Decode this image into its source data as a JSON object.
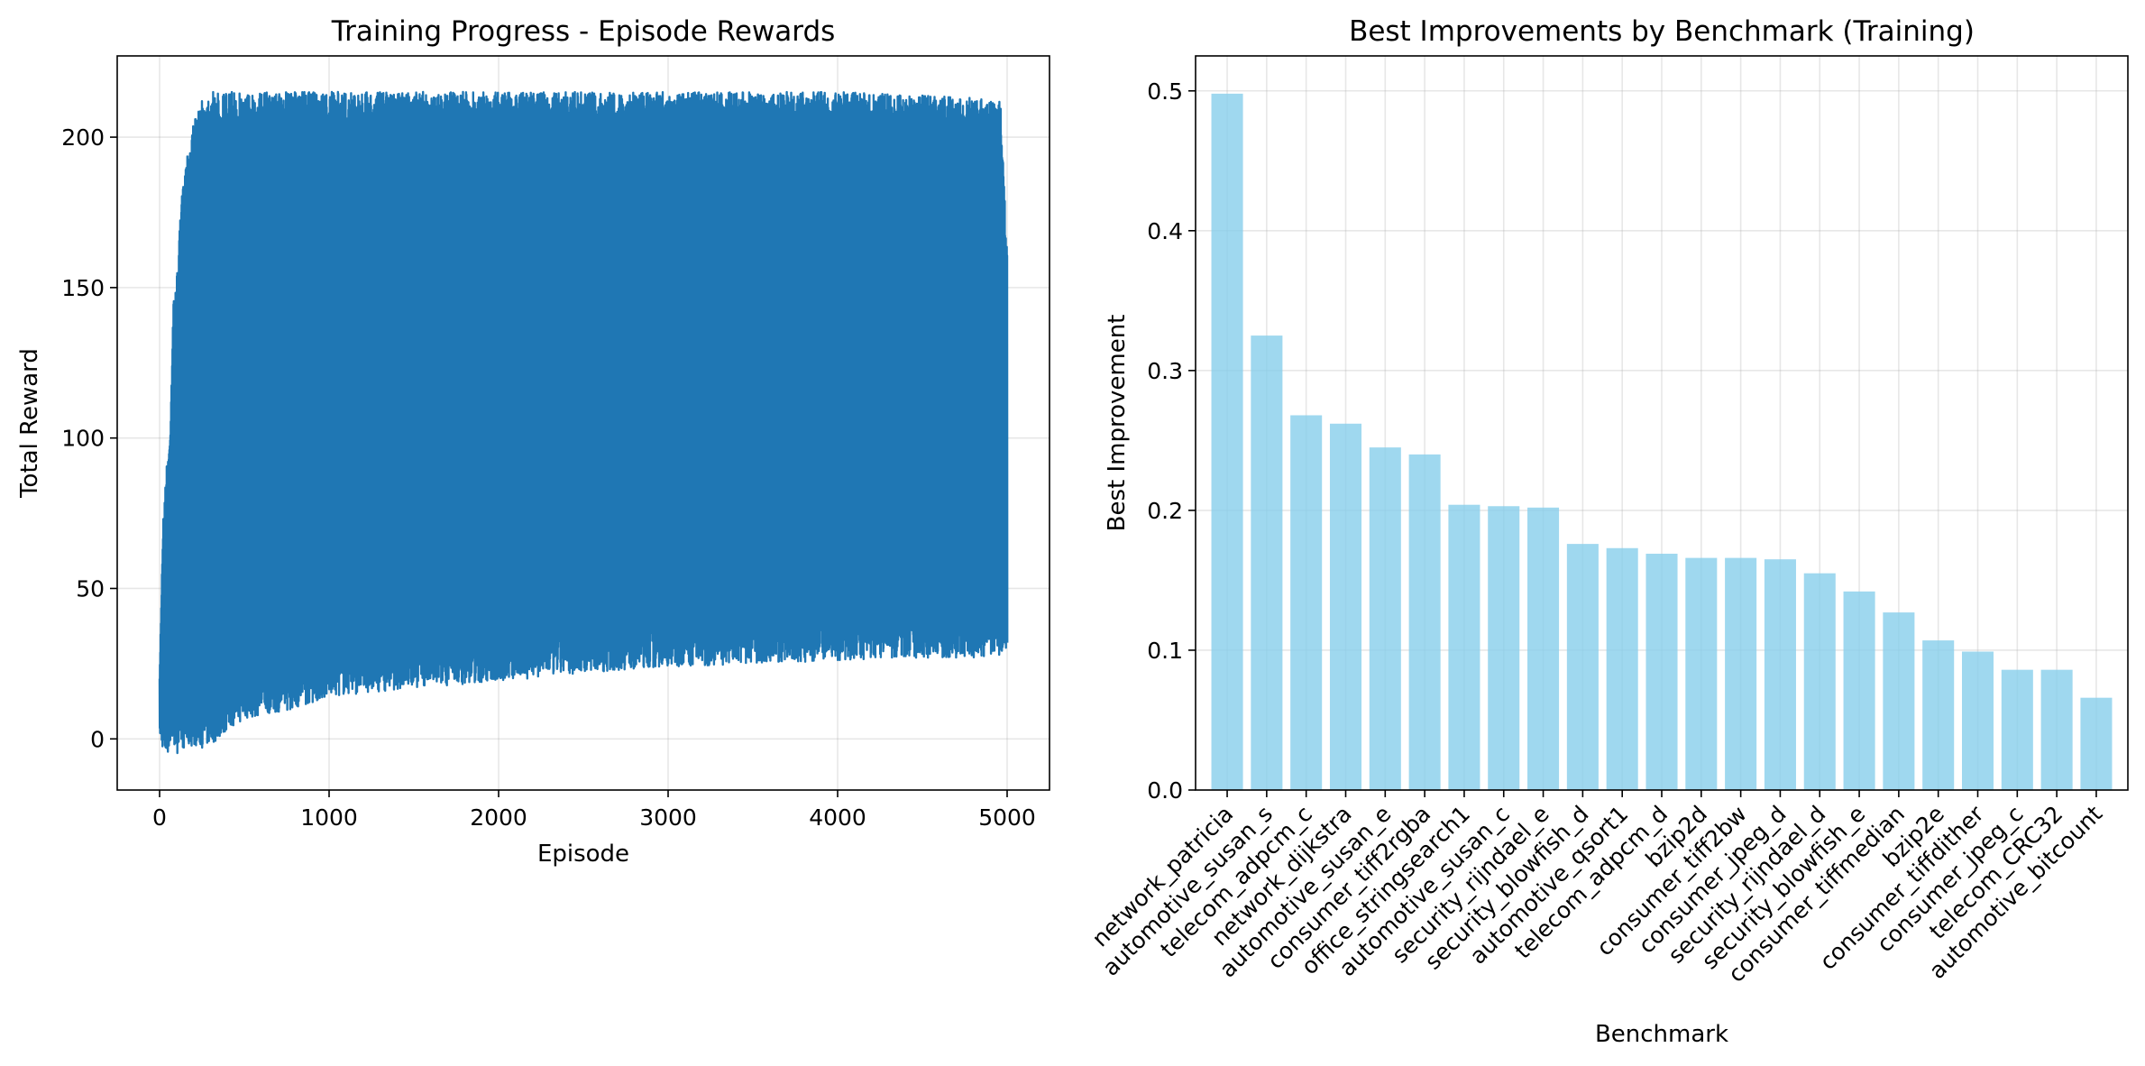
{
  "chart_data": [
    {
      "type": "line",
      "title": "Training Progress - Episode Rewards",
      "xlabel": "Episode",
      "ylabel": "Total Reward",
      "xlim": [
        -250,
        5250
      ],
      "ylim": [
        -17,
        227
      ],
      "xticks": [
        0,
        1000,
        2000,
        3000,
        4000,
        5000
      ],
      "xtick_labels": [
        "0",
        "1000",
        "2000",
        "3000",
        "4000",
        "5000"
      ],
      "yticks": [
        0,
        50,
        100,
        150,
        200
      ],
      "ytick_labels": [
        "0",
        "50",
        "100",
        "150",
        "200"
      ],
      "grid": true,
      "legend": "none",
      "color": "#1f77b4",
      "series_envelope": {
        "description_free": true,
        "episodes": [
          0,
          20,
          40,
          60,
          80,
          100,
          130,
          160,
          200,
          250,
          300,
          350,
          400,
          450,
          500,
          600,
          800,
          1000,
          1500,
          2000,
          2500,
          3000,
          3500,
          4000,
          4500,
          4800,
          4960,
          5000
        ],
        "upper": [
          20,
          72,
          90,
          100,
          145,
          152,
          180,
          195,
          205,
          212,
          215,
          215,
          215,
          215,
          215,
          215,
          215,
          215,
          215,
          215,
          215,
          215,
          215,
          215,
          214,
          213,
          212,
          162
        ],
        "lower": [
          2,
          -4,
          -6,
          -3,
          -2,
          -5,
          -3,
          -4,
          -2,
          -3,
          -2,
          0,
          3,
          5,
          6,
          8,
          10,
          14,
          17,
          19,
          22,
          24,
          25,
          26,
          27,
          27,
          28,
          30
        ]
      }
    },
    {
      "type": "bar",
      "title": "Best Improvements by Benchmark (Training)",
      "xlabel": "Benchmark",
      "ylabel": "Best Improvement",
      "ylim": [
        0,
        0.525
      ],
      "yticks": [
        0.0,
        0.1,
        0.2,
        0.3,
        0.4,
        0.5
      ],
      "ytick_labels": [
        "0.0",
        "0.1",
        "0.2",
        "0.3",
        "0.4",
        "0.5"
      ],
      "grid": true,
      "legend": "none",
      "color": "#87ceeb",
      "categories": [
        "network_patricia",
        "automotive_susan_s",
        "telecom_adpcm_c",
        "network_dijkstra",
        "automotive_susan_e",
        "consumer_tiff2rgba",
        "office_stringsearch1",
        "automotive_susan_c",
        "security_rijndael_e",
        "security_blowfish_d",
        "automotive_qsort1",
        "telecom_adpcm_d",
        "bzip2d",
        "consumer_tiff2bw",
        "consumer_jpeg_d",
        "security_rijndael_d",
        "security_blowfish_e",
        "consumer_tiffmedian",
        "bzip2e",
        "consumer_tiffdither",
        "consumer_jpeg_c",
        "telecom_CRC32",
        "automotive_bitcount"
      ],
      "values": [
        0.498,
        0.325,
        0.268,
        0.262,
        0.245,
        0.24,
        0.204,
        0.203,
        0.202,
        0.176,
        0.173,
        0.169,
        0.166,
        0.166,
        0.165,
        0.155,
        0.142,
        0.127,
        0.107,
        0.099,
        0.086,
        0.086,
        0.066
      ]
    }
  ]
}
